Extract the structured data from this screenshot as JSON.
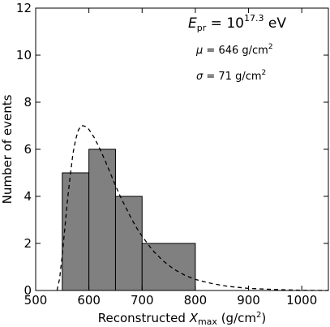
{
  "chart_data": {
    "type": "bar",
    "subtype": "histogram",
    "bins": [
      {
        "x0": 550,
        "x1": 600,
        "count": 5
      },
      {
        "x0": 600,
        "x1": 650,
        "count": 6
      },
      {
        "x0": 650,
        "x1": 700,
        "count": 4
      },
      {
        "x0": 700,
        "x1": 800,
        "count": 2
      }
    ],
    "fit_curve": {
      "style": "dashed",
      "points": [
        [
          540,
          0.0
        ],
        [
          545,
          0.5
        ],
        [
          550,
          1.5
        ],
        [
          555,
          2.7
        ],
        [
          560,
          3.9
        ],
        [
          565,
          4.9
        ],
        [
          570,
          5.8
        ],
        [
          575,
          6.4
        ],
        [
          580,
          6.8
        ],
        [
          585,
          7.0
        ],
        [
          590,
          7.0
        ],
        [
          595,
          6.95
        ],
        [
          600,
          6.85
        ],
        [
          610,
          6.5
        ],
        [
          620,
          6.05
        ],
        [
          630,
          5.55
        ],
        [
          640,
          5.0
        ],
        [
          650,
          4.45
        ],
        [
          660,
          3.95
        ],
        [
          670,
          3.5
        ],
        [
          680,
          3.05
        ],
        [
          690,
          2.65
        ],
        [
          700,
          2.3
        ],
        [
          720,
          1.7
        ],
        [
          740,
          1.25
        ],
        [
          760,
          0.9
        ],
        [
          780,
          0.65
        ],
        [
          800,
          0.47
        ],
        [
          830,
          0.3
        ],
        [
          860,
          0.18
        ],
        [
          900,
          0.09
        ],
        [
          950,
          0.04
        ],
        [
          1000,
          0.01
        ],
        [
          1050,
          0.0
        ]
      ]
    },
    "xlim": [
      500,
      1050
    ],
    "ylim": [
      0,
      12
    ],
    "xticks": [
      500,
      600,
      700,
      800,
      900,
      1000
    ],
    "yticks": [
      0,
      2,
      4,
      6,
      8,
      10,
      12
    ],
    "xlabel": {
      "prefix": "Reconstructed ",
      "var": "X",
      "sub": "max",
      "unit_open": " (g/cm",
      "unit_sup": "2",
      "unit_close": ")"
    },
    "ylabel": "Number of events",
    "annotations": {
      "energy": {
        "var": "E",
        "sub": "pr",
        "eq": " = 10",
        "sup": "17.3",
        "unit": " eV"
      },
      "mu": {
        "sym": "μ",
        "text": " = 646 g/cm",
        "sup": "2"
      },
      "sigma": {
        "sym": "σ",
        "text": " = 71 g/cm",
        "sup": "2"
      }
    },
    "bar_color": "#808080",
    "grid": false
  }
}
